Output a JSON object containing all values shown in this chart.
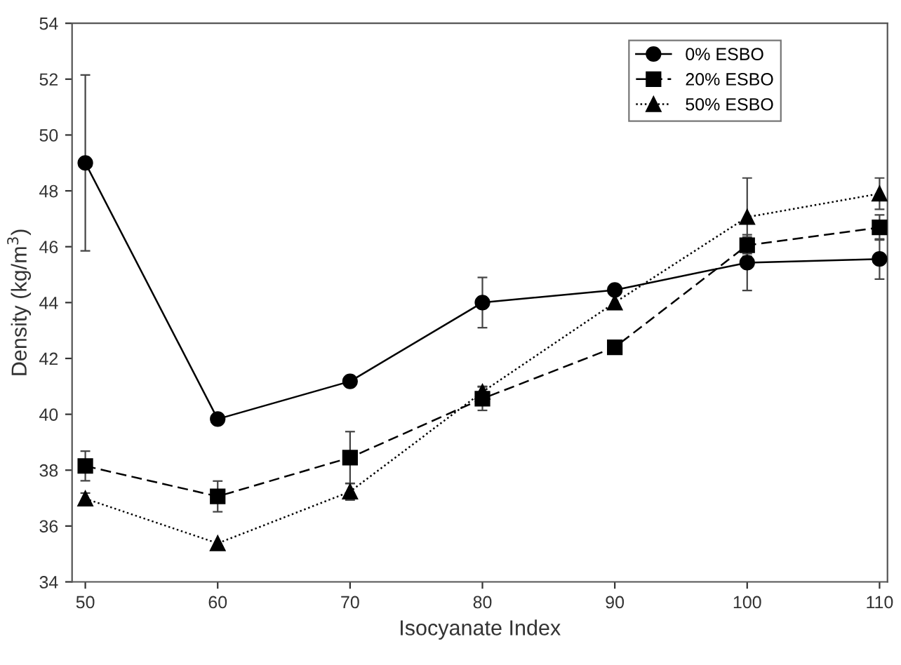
{
  "chart_data": {
    "type": "line",
    "xlabel": "Isocyanate Index",
    "ylabel": "Density (kg/m$^{3}$)",
    "x": [
      50,
      60,
      70,
      80,
      90,
      100,
      110
    ],
    "xlim": [
      49,
      110.6
    ],
    "xticks": [
      50,
      60,
      70,
      80,
      90,
      100,
      110
    ],
    "ylim": [
      34,
      54
    ],
    "yticks": [
      34,
      36,
      38,
      40,
      42,
      44,
      46,
      48,
      50,
      52,
      54
    ],
    "grid": false,
    "legend": "top right",
    "series": [
      {
        "name": "0% ESBO",
        "color": "#000000",
        "marker": "circle",
        "line_style": "solid",
        "values": [
          49.0,
          39.83,
          41.18,
          44.0,
          44.45,
          45.43,
          45.56
        ],
        "errors": [
          3.15,
          null,
          null,
          0.9,
          null,
          1.0,
          0.72
        ]
      },
      {
        "name": "20% ESBO",
        "color": "#000000",
        "marker": "square",
        "line_style": "dashed",
        "values": [
          38.15,
          37.06,
          38.45,
          40.56,
          42.4,
          46.05,
          46.69
        ],
        "errors": [
          0.53,
          0.55,
          0.93,
          0.42,
          null,
          0.3,
          0.45
        ]
      },
      {
        "name": "50% ESBO",
        "color": "#000000",
        "marker": "triangle",
        "line_style": "dotted",
        "values": [
          36.98,
          35.38,
          37.23,
          40.8,
          44.0,
          47.06,
          47.9
        ],
        "errors": [
          0.2,
          null,
          0.3,
          0.2,
          null,
          1.4,
          0.56
        ]
      }
    ]
  }
}
